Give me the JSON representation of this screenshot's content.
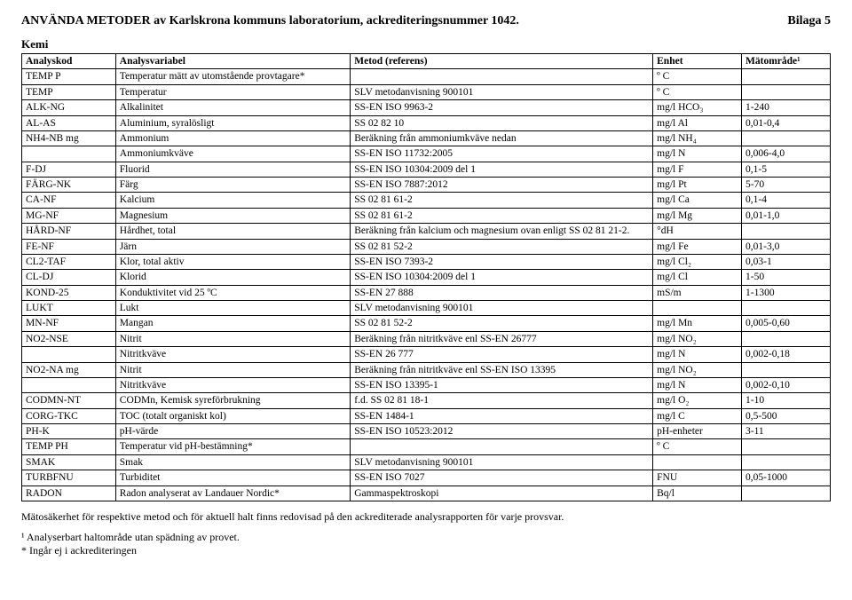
{
  "header": {
    "title": "ANVÄNDA METODER av Karlskrona kommuns laboratorium, ackrediteringsnummer 1042.",
    "bilaga": "Bilaga 5"
  },
  "section_label": "Kemi",
  "columns": [
    "Analyskod",
    "Analysvariabel",
    "Metod (referens)",
    "Enhet",
    "Mätområde¹"
  ],
  "rows": [
    [
      "TEMP P",
      "Temperatur mätt av utomstående provtagare*",
      "",
      "º C",
      ""
    ],
    [
      "TEMP",
      "Temperatur",
      "SLV metodanvisning 900101",
      "º C",
      ""
    ],
    [
      "ALK-NG",
      "Alkalinitet",
      "SS-EN ISO 9963-2",
      "mg/l HCO₃",
      "1-240"
    ],
    [
      "AL-AS",
      "Aluminium, syralösligt",
      "SS 02 82 10",
      "mg/l Al",
      "0,01-0,4"
    ],
    [
      "NH4-NB mg",
      "Ammonium",
      "Beräkning från ammoniumkväve nedan",
      "mg/l NH₄",
      ""
    ],
    [
      "",
      "Ammoniumkväve",
      "SS-EN ISO 11732:2005",
      "mg/l N",
      "0,006-4,0"
    ],
    [
      "F-DJ",
      "Fluorid",
      "SS-EN ISO 10304:2009 del 1",
      "mg/l F",
      "0,1-5"
    ],
    [
      "FÄRG-NK",
      "Färg",
      "SS-EN ISO 7887:2012",
      "mg/l Pt",
      "5-70"
    ],
    [
      "CA-NF",
      "Kalcium",
      "SS 02 81 61-2",
      "mg/l Ca",
      "0,1-4"
    ],
    [
      "MG-NF",
      "Magnesium",
      "SS 02 81 61-2",
      "mg/l Mg",
      "0,01-1,0"
    ],
    [
      "HÅRD-NF",
      "Hårdhet, total",
      "Beräkning från kalcium och magnesium ovan enligt SS 02 81 21-2.",
      "°dH",
      ""
    ],
    [
      "FE-NF",
      "Järn",
      "SS 02 81 52-2",
      "mg/l Fe",
      "0,01-3,0"
    ],
    [
      "CL2-TAF",
      "Klor, total aktiv",
      "SS-EN ISO 7393-2",
      "mg/l Cl₂",
      "0,03-1"
    ],
    [
      "CL-DJ",
      "Klorid",
      "SS-EN ISO 10304:2009 del 1",
      "mg/l Cl",
      "1-50"
    ],
    [
      "KOND-25",
      "Konduktivitet vid 25 ºC",
      "SS-EN 27 888",
      "mS/m",
      "1-1300"
    ],
    [
      "LUKT",
      "Lukt",
      "SLV metodanvisning 900101",
      "",
      ""
    ],
    [
      "MN-NF",
      "Mangan",
      "SS 02 81 52-2",
      "mg/l Mn",
      "0,005-0,60"
    ],
    [
      "NO2-NSE",
      "Nitrit",
      "Beräkning från nitritkväve enl SS-EN 26777",
      "mg/l NO₂",
      ""
    ],
    [
      "",
      "Nitritkväve",
      "SS-EN 26 777",
      "mg/l N",
      "0,002-0,18"
    ],
    [
      "NO2-NA mg",
      "Nitrit",
      "Beräkning från nitritkväve enl SS-EN ISO 13395",
      "mg/l NO₂",
      ""
    ],
    [
      "",
      "Nitritkväve",
      "SS-EN ISO 13395-1",
      "mg/l N",
      "0,002-0,10"
    ],
    [
      "CODMN-NT",
      "CODMn, Kemisk syreförbrukning",
      "f.d. SS 02 81 18-1",
      "mg/l O₂",
      "1-10"
    ],
    [
      "CORG-TKC",
      "TOC (totalt organiskt kol)",
      "SS-EN 1484-1",
      "mg/l C",
      "0,5-500"
    ],
    [
      "PH-K",
      "pH-värde",
      "SS-EN ISO 10523:2012",
      "pH-enheter",
      "3-11"
    ],
    [
      "TEMP PH",
      "Temperatur vid pH-bestämning*",
      "",
      "º C",
      ""
    ],
    [
      "SMAK",
      "Smak",
      "SLV metodanvisning 900101",
      "",
      ""
    ],
    [
      "TURBFNU",
      "Turbiditet",
      "SS-EN ISO 7027",
      "FNU",
      "0,05-1000"
    ],
    [
      "RADON",
      "Radon analyserat av Landauer Nordic*",
      "Gammaspektroskopi",
      "Bq/l",
      ""
    ]
  ],
  "footer": {
    "note": "Mätosäkerhet för respektive metod och för aktuell halt finns redovisad på den ackrediterade analysrapporten för varje provsvar.",
    "fn1": "¹ Analyserbart haltområde utan spädning av provet.",
    "fn2": "* Ingår ej i ackrediteringen"
  }
}
